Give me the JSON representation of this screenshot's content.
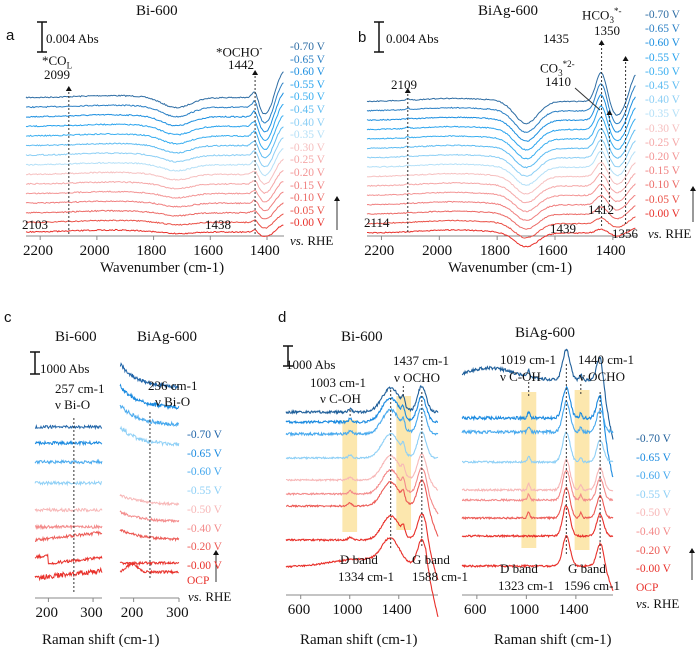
{
  "figure": {
    "panel_labels": [
      "a",
      "b",
      "c",
      "d"
    ],
    "reference_label": "vs. RHE",
    "reference_italic": "vs.",
    "reference_unit": "RHE"
  },
  "chart_data": [
    {
      "panel": "a",
      "type": "line",
      "title": "Bi-600",
      "xlabel": "Wavenumber (cm-1)",
      "xlim": [
        2250,
        1340
      ],
      "x_reversed": true,
      "x_ticks": [
        2200,
        2000,
        1800,
        1600,
        1400
      ],
      "scale_bar": "0.004 Abs",
      "series_names": [
        "-0.70 V",
        "-0.65 V",
        "-0.60 V",
        "-0.55 V",
        "-0.50 V",
        "-0.45 V",
        "-0.40 V",
        "-0.35 V",
        "-0.30 V",
        "-0.25 V",
        "-0.20 V",
        "-0.15 V",
        "-0.10 V",
        "-0.05 V",
        "-0.00 V"
      ],
      "series_colors": [
        "#2e6da4",
        "#2a7fc4",
        "#1c8fe0",
        "#29a3ee",
        "#39aef0",
        "#5ebcf2",
        "#8ccff5",
        "#b5e0f7",
        "#f6c0c0",
        "#f5a8a8",
        "#f39595",
        "#f08080",
        "#ec6a66",
        "#ea5248",
        "#e8302a"
      ],
      "annotations": [
        {
          "species": "*CO",
          "subscript": "L",
          "value": "2099",
          "x": 2099
        },
        {
          "species": "*OCHO",
          "superscript": "-",
          "value": "1442",
          "x": 1442
        },
        {
          "value": "2103",
          "x": 2103
        },
        {
          "value": "1438",
          "x": 1438
        }
      ]
    },
    {
      "panel": "b",
      "type": "line",
      "title": "BiAg-600",
      "xlabel": "Wavenumber (cm-1)",
      "xlim": [
        2250,
        1320
      ],
      "x_reversed": true,
      "x_ticks": [
        2200,
        2000,
        1800,
        1600,
        1400
      ],
      "scale_bar": "0.004 Abs",
      "series_names": [
        "-0.70 V",
        "-0.65 V",
        "-0.60 V",
        "-0.55 V",
        "-0.50 V",
        "-0.45 V",
        "-0.40 V",
        "-0.35 V",
        "-0.30 V",
        "-0.25 V",
        "-0.20 V",
        "-0.15 V",
        "-0.10 V",
        "-0.05 V",
        "-0.00 V"
      ],
      "series_colors": [
        "#2e6da4",
        "#2a7fc4",
        "#1c8fe0",
        "#29a3ee",
        "#39aef0",
        "#5ebcf2",
        "#8ccff5",
        "#b5e0f7",
        "#f6c0c0",
        "#f5a8a8",
        "#f39595",
        "#f08080",
        "#ec6a66",
        "#ea5248",
        "#e8302a"
      ],
      "annotations": [
        {
          "value": "2109",
          "x": 2109
        },
        {
          "value": "1435",
          "x": 1435
        },
        {
          "species": "CO",
          "subscript": "3",
          "superscript": "*2-",
          "value": "1410",
          "x": 1410
        },
        {
          "species": "HCO",
          "subscript": "3",
          "superscript": "*-",
          "value": "1350",
          "x": 1350
        },
        {
          "value": "2114",
          "x": 2114
        },
        {
          "value": "1439",
          "x": 1439
        },
        {
          "value": "1412",
          "x": 1412
        },
        {
          "value": "1356",
          "x": 1356
        }
      ]
    },
    {
      "panel": "c",
      "type": "line",
      "subplots": [
        {
          "title": "Bi-600",
          "xlim": [
            170,
            320
          ],
          "x_ticks": [
            200,
            300
          ],
          "peak": {
            "value": "257 cm-1",
            "mode": "ν Bi-O",
            "x": 257
          }
        },
        {
          "title": "BiAg-600",
          "xlim": [
            170,
            300
          ],
          "x_ticks": [
            200,
            300
          ],
          "peak": {
            "value": "236 cm-1",
            "mode": "ν Bi-O",
            "x": 236
          }
        }
      ],
      "xlabel": "Raman shift (cm-1)",
      "scale_bar": "1000 Abs",
      "series_names": [
        "-0.70 V",
        "-0.65 V",
        "-0.60 V",
        "-0.55 V",
        "-0.50 V",
        "-0.40 V",
        "-0.20 V",
        "-0.00 V",
        "OCP"
      ],
      "series_colors": [
        "#1f64a8",
        "#1a8ae0",
        "#47a9ee",
        "#8fd0f6",
        "#f7b7b7",
        "#f38b8b",
        "#ec5a55",
        "#e8302a",
        "#e8302a"
      ]
    },
    {
      "panel": "d",
      "type": "line",
      "subplots": [
        {
          "title": "Bi-600",
          "xlim": [
            480,
            1720
          ],
          "x_ticks": [
            600,
            1000,
            1400
          ],
          "peaks": [
            {
              "value": "1003 cm-1",
              "mode": "ν C-OH",
              "x": 1003
            },
            {
              "value": "1437 cm-1",
              "mode": "ν OCHO",
              "x": 1437
            },
            {
              "band": "D band",
              "value": "1334 cm-1",
              "x": 1334
            },
            {
              "band": "G band",
              "value": "1588 cm-1",
              "x": 1588
            }
          ]
        },
        {
          "title": "BiAg-600",
          "xlim": [
            480,
            1700
          ],
          "x_ticks": [
            600,
            1000,
            1400
          ],
          "peaks": [
            {
              "value": "1019 cm-1",
              "mode": "ν C-OH",
              "x": 1019
            },
            {
              "value": "1440 cm-1",
              "mode": "ν OCHO",
              "x": 1440
            },
            {
              "band": "D band",
              "value": "1323 cm-1",
              "x": 1323
            },
            {
              "band": "G band",
              "value": "1596 cm-1",
              "x": 1596
            }
          ]
        }
      ],
      "xlabel": "Raman shift (cm-1)",
      "scale_bar": "1000 Abs",
      "highlight_color": "#fbe3a0",
      "series_names": [
        "-0.70 V",
        "-0.65 V",
        "-0.60 V",
        "-0.55 V",
        "-0.50 V",
        "-0.40 V",
        "-0.20 V",
        "-0.00 V",
        "OCP"
      ],
      "series_colors": [
        "#1f5f9a",
        "#1a8ae0",
        "#47a9ee",
        "#8fd0f6",
        "#f7b7b7",
        "#f38b8b",
        "#ec5a55",
        "#e8302a",
        "#e8302a"
      ]
    }
  ]
}
